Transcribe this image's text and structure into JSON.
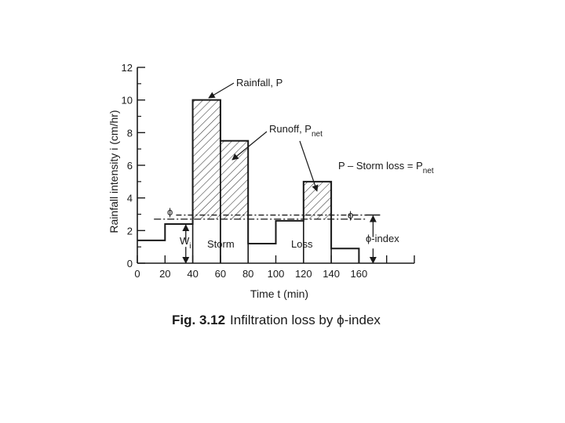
{
  "chart_data": {
    "type": "bar",
    "ylabel": "Rainfall intensity i (cm/hr)",
    "xlabel": "Time t (min)",
    "xlim": [
      0,
      200
    ],
    "ylim": [
      0,
      12
    ],
    "x_ticks": [
      0,
      20,
      40,
      60,
      80,
      100,
      120,
      140,
      160
    ],
    "x_tick_labels": [
      "0",
      "20",
      "40",
      "60",
      "80",
      "100",
      "120",
      "140",
      "160"
    ],
    "y_ticks": [
      0,
      2,
      4,
      6,
      8,
      10,
      12
    ],
    "y_tick_labels": [
      "0",
      "2",
      "4",
      "6",
      "8",
      "10",
      "12"
    ],
    "hyetograph": [
      {
        "t0": 0,
        "t1": 20,
        "i": 1.4
      },
      {
        "t0": 20,
        "t1": 40,
        "i": 2.4
      },
      {
        "t0": 40,
        "t1": 60,
        "i": 10.0
      },
      {
        "t0": 60,
        "t1": 80,
        "i": 7.5
      },
      {
        "t0": 80,
        "t1": 100,
        "i": 1.2
      },
      {
        "t0": 100,
        "t1": 120,
        "i": 2.6
      },
      {
        "t0": 120,
        "t1": 140,
        "i": 5.0
      },
      {
        "t0": 140,
        "t1": 160,
        "i": 0.9
      }
    ],
    "phi_index": 2.7,
    "w_index": 2.95,
    "phi_marker_x": 160,
    "w_x": 35,
    "extra_ticks_x": [
      180,
      200
    ]
  },
  "annotations": {
    "rainfall": "Rainfall, P",
    "runoff_main": "Runoff, P",
    "runoff_sub": "net",
    "equation_main": "P – Storm loss = P",
    "equation_sub": "net",
    "phi_left": "ϕ",
    "phi_right": "ϕ",
    "phi_index": "ϕ-index",
    "w_main": "W",
    "w_sub": "i",
    "storm": "Storm",
    "loss": "Loss"
  },
  "caption": {
    "prefix": "Fig. 3.12",
    "text": "Infiltration loss by ϕ-index"
  },
  "colors": {
    "line": "#1a1a1a",
    "hatch": "#333333",
    "background": "#ffffff"
  }
}
